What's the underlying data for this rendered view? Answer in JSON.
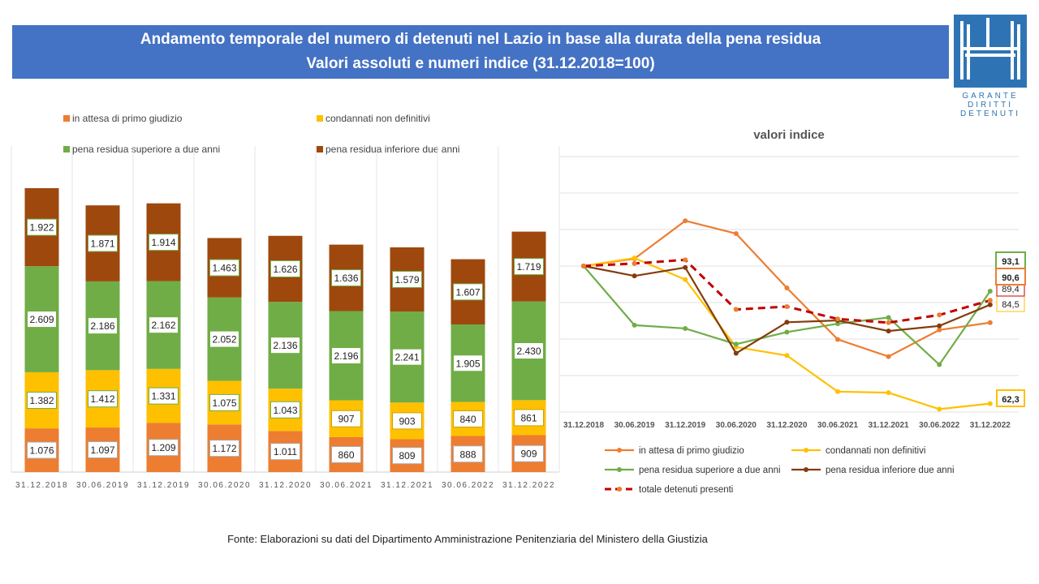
{
  "header": {
    "title_line1": "Andamento temporale del numero di detenuti nel Lazio in base alla durata della pena residua",
    "title_line2": "Valori assoluti e numeri indice (31.12.2018=100)",
    "banner_color": "#4472c4"
  },
  "logo": {
    "line1": "GARANTE",
    "line2": "DIRITTI",
    "line3": "DETENUTI",
    "color": "#2e74b5"
  },
  "source": "Fonte:  Elaborazioni su dati del Dipartimento  Amministrazione Penitenziaria del Ministero della Giustizia",
  "chart_data": [
    {
      "type": "bar",
      "stacked": true,
      "categories": [
        "31.12.2018",
        "30.06.2019",
        "31.12.2019",
        "30.06.2020",
        "31.12.2020",
        "30.06.2021",
        "31.12.2021",
        "30.06.2022",
        "31.12.2022"
      ],
      "series": [
        {
          "name": "in attesa di primo giudizio",
          "color": "#ed7d31",
          "values": [
            1076,
            1097,
            1209,
            1172,
            1011,
            860,
            809,
            888,
            909
          ],
          "labels": [
            "1.076",
            "1.097",
            "1.209",
            "1.172",
            "1.011",
            "860",
            "809",
            "888",
            "909"
          ]
        },
        {
          "name": "condannati non definitivi",
          "color": "#ffc000",
          "values": [
            1382,
            1412,
            1331,
            1075,
            1043,
            907,
            903,
            840,
            861
          ],
          "labels": [
            "1.382",
            "1.412",
            "1.331",
            "1.075",
            "1.043",
            "907",
            "903",
            "840",
            "861"
          ]
        },
        {
          "name": "pena residua superiore a due anni",
          "color": "#70ad47",
          "values": [
            2609,
            2186,
            2162,
            2052,
            2136,
            2196,
            2241,
            1905,
            2430
          ],
          "labels": [
            "2.609",
            "2.186",
            "2.162",
            "2.052",
            "2.136",
            "2.196",
            "2.241",
            "1.905",
            "2.430"
          ]
        },
        {
          "name": "pena residua inferiore due anni",
          "color": "#9e480e",
          "values": [
            1922,
            1871,
            1914,
            1463,
            1626,
            1636,
            1579,
            1607,
            1719
          ],
          "labels": [
            "1.922",
            "1.871",
            "1.914",
            "1.463",
            "1.626",
            "1.636",
            "1.579",
            "1.607",
            "1.719"
          ]
        }
      ],
      "tick_labels": [
        "31.12.2018",
        "30.06.2019",
        "31.12.2019",
        "30.06.2020",
        "31.12.2020",
        "30.06.2021",
        "31.12.2021",
        "30.06.2022",
        "31.12.2022"
      ],
      "legend_position": "top",
      "grid": false
    },
    {
      "type": "line",
      "title": "valori indice",
      "categories": [
        "31.12.2018",
        "30.06.2019",
        "31.12.2019",
        "30.06.2020",
        "31.12.2020",
        "30.06.2021",
        "31.12.2021",
        "30.06.2022",
        "31.12.2022"
      ],
      "ylim": [
        60,
        130
      ],
      "grid": true,
      "legend_position": "bottom",
      "series": [
        {
          "name": "in attesa di primo giudizio",
          "color": "#ed7d31",
          "dashed": false,
          "values": [
            100,
            102,
            112.4,
            108.9,
            94,
            79.9,
            75.2,
            82.5,
            84.5
          ],
          "end_label": "84,5"
        },
        {
          "name": "condannati non definitivi",
          "color": "#ffc000",
          "dashed": false,
          "values": [
            100,
            102.2,
            96.3,
            77.8,
            75.5,
            65.6,
            65.3,
            60.8,
            62.3
          ],
          "end_label": "62,3"
        },
        {
          "name": "pena residua superiore a due anni",
          "color": "#70ad47",
          "dashed": false,
          "values": [
            100,
            83.8,
            82.9,
            78.6,
            81.9,
            84.2,
            85.9,
            73,
            93.1
          ],
          "end_label": "93,1"
        },
        {
          "name": "pena residua inferiore due anni",
          "color": "#843c0c",
          "dashed": false,
          "values": [
            100,
            97.3,
            99.6,
            76.1,
            84.6,
            85.1,
            82.2,
            83.6,
            89.4
          ],
          "end_label": "89,4"
        },
        {
          "name": "totale detenuti presenti",
          "color": "#c00000",
          "dashed": true,
          "values": [
            100,
            100.7,
            101.7,
            88.1,
            88.9,
            85.5,
            84.5,
            86.6,
            90.6
          ],
          "end_label": "90,6"
        }
      ]
    }
  ]
}
